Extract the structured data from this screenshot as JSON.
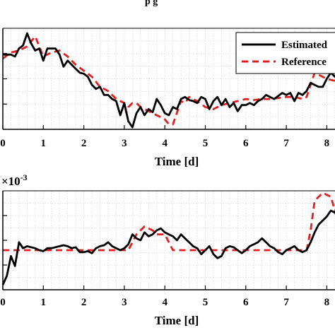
{
  "top_fragment": "p            g",
  "chart_data": [
    {
      "type": "line",
      "xlabel": "Time [d]",
      "ylabel": "",
      "xlim": [
        0,
        8.3
      ],
      "ylim": [
        0,
        1
      ],
      "x_ticks": [
        0,
        1,
        2,
        3,
        4,
        5,
        6,
        7,
        8
      ],
      "grid": true,
      "legend_position": "top-right",
      "series": [
        {
          "name": "Estimated",
          "color": "#000000",
          "dash": "solid",
          "x": [
            0,
            0.1,
            0.2,
            0.3,
            0.4,
            0.5,
            0.6,
            0.7,
            0.8,
            0.9,
            1.0,
            1.1,
            1.2,
            1.3,
            1.4,
            1.5,
            1.6,
            1.7,
            1.8,
            1.9,
            2.0,
            2.1,
            2.2,
            2.3,
            2.4,
            2.5,
            2.6,
            2.7,
            2.8,
            2.9,
            3.0,
            3.1,
            3.2,
            3.3,
            3.4,
            3.5,
            3.6,
            3.7,
            3.8,
            3.9,
            4.0,
            4.1,
            4.2,
            4.3,
            4.4,
            4.5,
            4.6,
            4.7,
            4.8,
            4.9,
            5.0,
            5.1,
            5.2,
            5.3,
            5.4,
            5.5,
            5.6,
            5.7,
            5.8,
            5.9,
            6.0,
            6.1,
            6.2,
            6.3,
            6.4,
            6.5,
            6.6,
            6.7,
            6.8,
            6.9,
            7.0,
            7.1,
            7.2,
            7.3,
            7.4,
            7.5,
            7.6,
            7.7,
            7.8,
            7.9,
            8.0,
            8.1,
            8.2,
            8.3
          ],
          "values": [
            0.74,
            0.74,
            0.74,
            0.72,
            0.8,
            0.83,
            0.95,
            0.85,
            0.78,
            0.8,
            0.68,
            0.8,
            0.8,
            0.8,
            0.74,
            0.62,
            0.68,
            0.64,
            0.6,
            0.56,
            0.55,
            0.52,
            0.44,
            0.4,
            0.42,
            0.34,
            0.34,
            0.3,
            0.28,
            0.14,
            0.26,
            0.08,
            0.02,
            0.16,
            0.22,
            0.14,
            0.2,
            0.17,
            0.3,
            0.24,
            0.16,
            0.14,
            0.22,
            0.2,
            0.3,
            0.32,
            0.29,
            0.28,
            0.26,
            0.32,
            0.3,
            0.2,
            0.28,
            0.32,
            0.24,
            0.3,
            0.22,
            0.26,
            0.18,
            0.24,
            0.24,
            0.26,
            0.24,
            0.28,
            0.3,
            0.34,
            0.32,
            0.3,
            0.33,
            0.36,
            0.34,
            0.36,
            0.28,
            0.36,
            0.34,
            0.38,
            0.46,
            0.44,
            0.42,
            0.42,
            0.5,
            0.56,
            0.52,
            0.6
          ]
        },
        {
          "name": "Reference",
          "color": "#e02020",
          "dash": "dashed",
          "x": [
            0,
            0.2,
            0.4,
            0.6,
            0.8,
            1.0,
            1.2,
            1.4,
            1.6,
            1.8,
            2.0,
            2.2,
            2.4,
            2.6,
            2.8,
            2.9,
            3.0,
            3.05,
            3.1,
            3.2,
            3.3,
            3.4,
            3.6,
            3.8,
            3.9,
            4.0,
            4.1,
            4.2,
            4.4,
            4.5,
            4.6,
            4.8,
            5.0,
            5.2,
            5.4,
            5.6,
            5.8,
            6.0,
            6.2,
            6.4,
            6.6,
            6.8,
            7.0,
            7.2,
            7.4,
            7.5,
            7.6,
            7.7,
            7.8,
            8.0,
            8.2,
            8.3
          ],
          "values": [
            0.7,
            0.76,
            0.78,
            0.82,
            0.92,
            0.72,
            0.76,
            0.78,
            0.72,
            0.64,
            0.58,
            0.52,
            0.42,
            0.38,
            0.3,
            0.28,
            0.26,
            0.16,
            0.22,
            0.26,
            0.26,
            0.22,
            0.18,
            0.14,
            0.12,
            0.1,
            0.05,
            0.05,
            0.28,
            0.26,
            0.32,
            0.28,
            0.22,
            0.2,
            0.24,
            0.26,
            0.28,
            0.3,
            0.29,
            0.3,
            0.3,
            0.31,
            0.32,
            0.32,
            0.3,
            0.32,
            0.44,
            0.56,
            0.54,
            0.5,
            0.48,
            0.5
          ]
        }
      ]
    },
    {
      "type": "line",
      "xlabel": "Time [d]",
      "ylabel": "",
      "axis_exponent": "×10-3",
      "exponent_base": "×10",
      "exponent_power": "-3",
      "xlim": [
        0,
        8.3
      ],
      "ylim": [
        0,
        1
      ],
      "x_ticks": [
        0,
        1,
        2,
        3,
        4,
        5,
        6,
        7,
        8
      ],
      "grid": true,
      "series": [
        {
          "name": "Estimated",
          "color": "#000000",
          "dash": "solid",
          "x": [
            0,
            0.1,
            0.2,
            0.3,
            0.4,
            0.5,
            0.6,
            0.7,
            0.8,
            0.9,
            1.0,
            1.1,
            1.2,
            1.3,
            1.4,
            1.5,
            1.6,
            1.7,
            1.8,
            1.9,
            2.0,
            2.1,
            2.2,
            2.3,
            2.4,
            2.5,
            2.6,
            2.7,
            2.8,
            2.9,
            3.0,
            3.1,
            3.2,
            3.3,
            3.4,
            3.5,
            3.6,
            3.7,
            3.8,
            3.9,
            4.0,
            4.1,
            4.2,
            4.3,
            4.4,
            4.5,
            4.6,
            4.7,
            4.8,
            4.9,
            5.0,
            5.1,
            5.2,
            5.3,
            5.4,
            5.5,
            5.6,
            5.7,
            5.8,
            5.9,
            6.0,
            6.1,
            6.2,
            6.3,
            6.4,
            6.5,
            6.6,
            6.7,
            6.8,
            6.9,
            7.0,
            7.1,
            7.2,
            7.3,
            7.4,
            7.5,
            7.6,
            7.7,
            7.8,
            7.9,
            8.0,
            8.1,
            8.2,
            8.3
          ],
          "values": [
            0.05,
            0.14,
            0.34,
            0.24,
            0.48,
            0.42,
            0.44,
            0.43,
            0.42,
            0.4,
            0.39,
            0.42,
            0.42,
            0.43,
            0.44,
            0.45,
            0.44,
            0.42,
            0.43,
            0.38,
            0.38,
            0.39,
            0.37,
            0.42,
            0.44,
            0.45,
            0.48,
            0.44,
            0.42,
            0.4,
            0.42,
            0.46,
            0.56,
            0.52,
            0.5,
            0.58,
            0.54,
            0.56,
            0.6,
            0.62,
            0.58,
            0.56,
            0.54,
            0.5,
            0.56,
            0.52,
            0.48,
            0.44,
            0.42,
            0.36,
            0.4,
            0.44,
            0.36,
            0.32,
            0.34,
            0.42,
            0.44,
            0.43,
            0.4,
            0.37,
            0.4,
            0.44,
            0.46,
            0.48,
            0.52,
            0.48,
            0.44,
            0.42,
            0.38,
            0.36,
            0.4,
            0.42,
            0.44,
            0.4,
            0.38,
            0.4,
            0.48,
            0.58,
            0.66,
            0.7,
            0.74,
            0.8,
            0.78,
            0.72
          ]
        },
        {
          "name": "Reference",
          "color": "#e02020",
          "dash": "dashed",
          "x": [
            0,
            0.5,
            1.0,
            1.5,
            2.0,
            2.5,
            3.0,
            3.1,
            3.3,
            3.5,
            3.7,
            3.8,
            4.0,
            4.2,
            4.4,
            4.6,
            4.8,
            5.0,
            5.5,
            6.0,
            6.5,
            7.0,
            7.5,
            7.6,
            7.7,
            7.9,
            8.1,
            8.2,
            8.3
          ],
          "values": [
            0.4,
            0.4,
            0.4,
            0.4,
            0.4,
            0.4,
            0.4,
            0.4,
            0.56,
            0.64,
            0.6,
            0.56,
            0.56,
            0.4,
            0.4,
            0.4,
            0.4,
            0.4,
            0.4,
            0.4,
            0.4,
            0.4,
            0.4,
            0.6,
            0.9,
            0.98,
            0.94,
            0.8,
            0.84
          ]
        }
      ]
    }
  ]
}
